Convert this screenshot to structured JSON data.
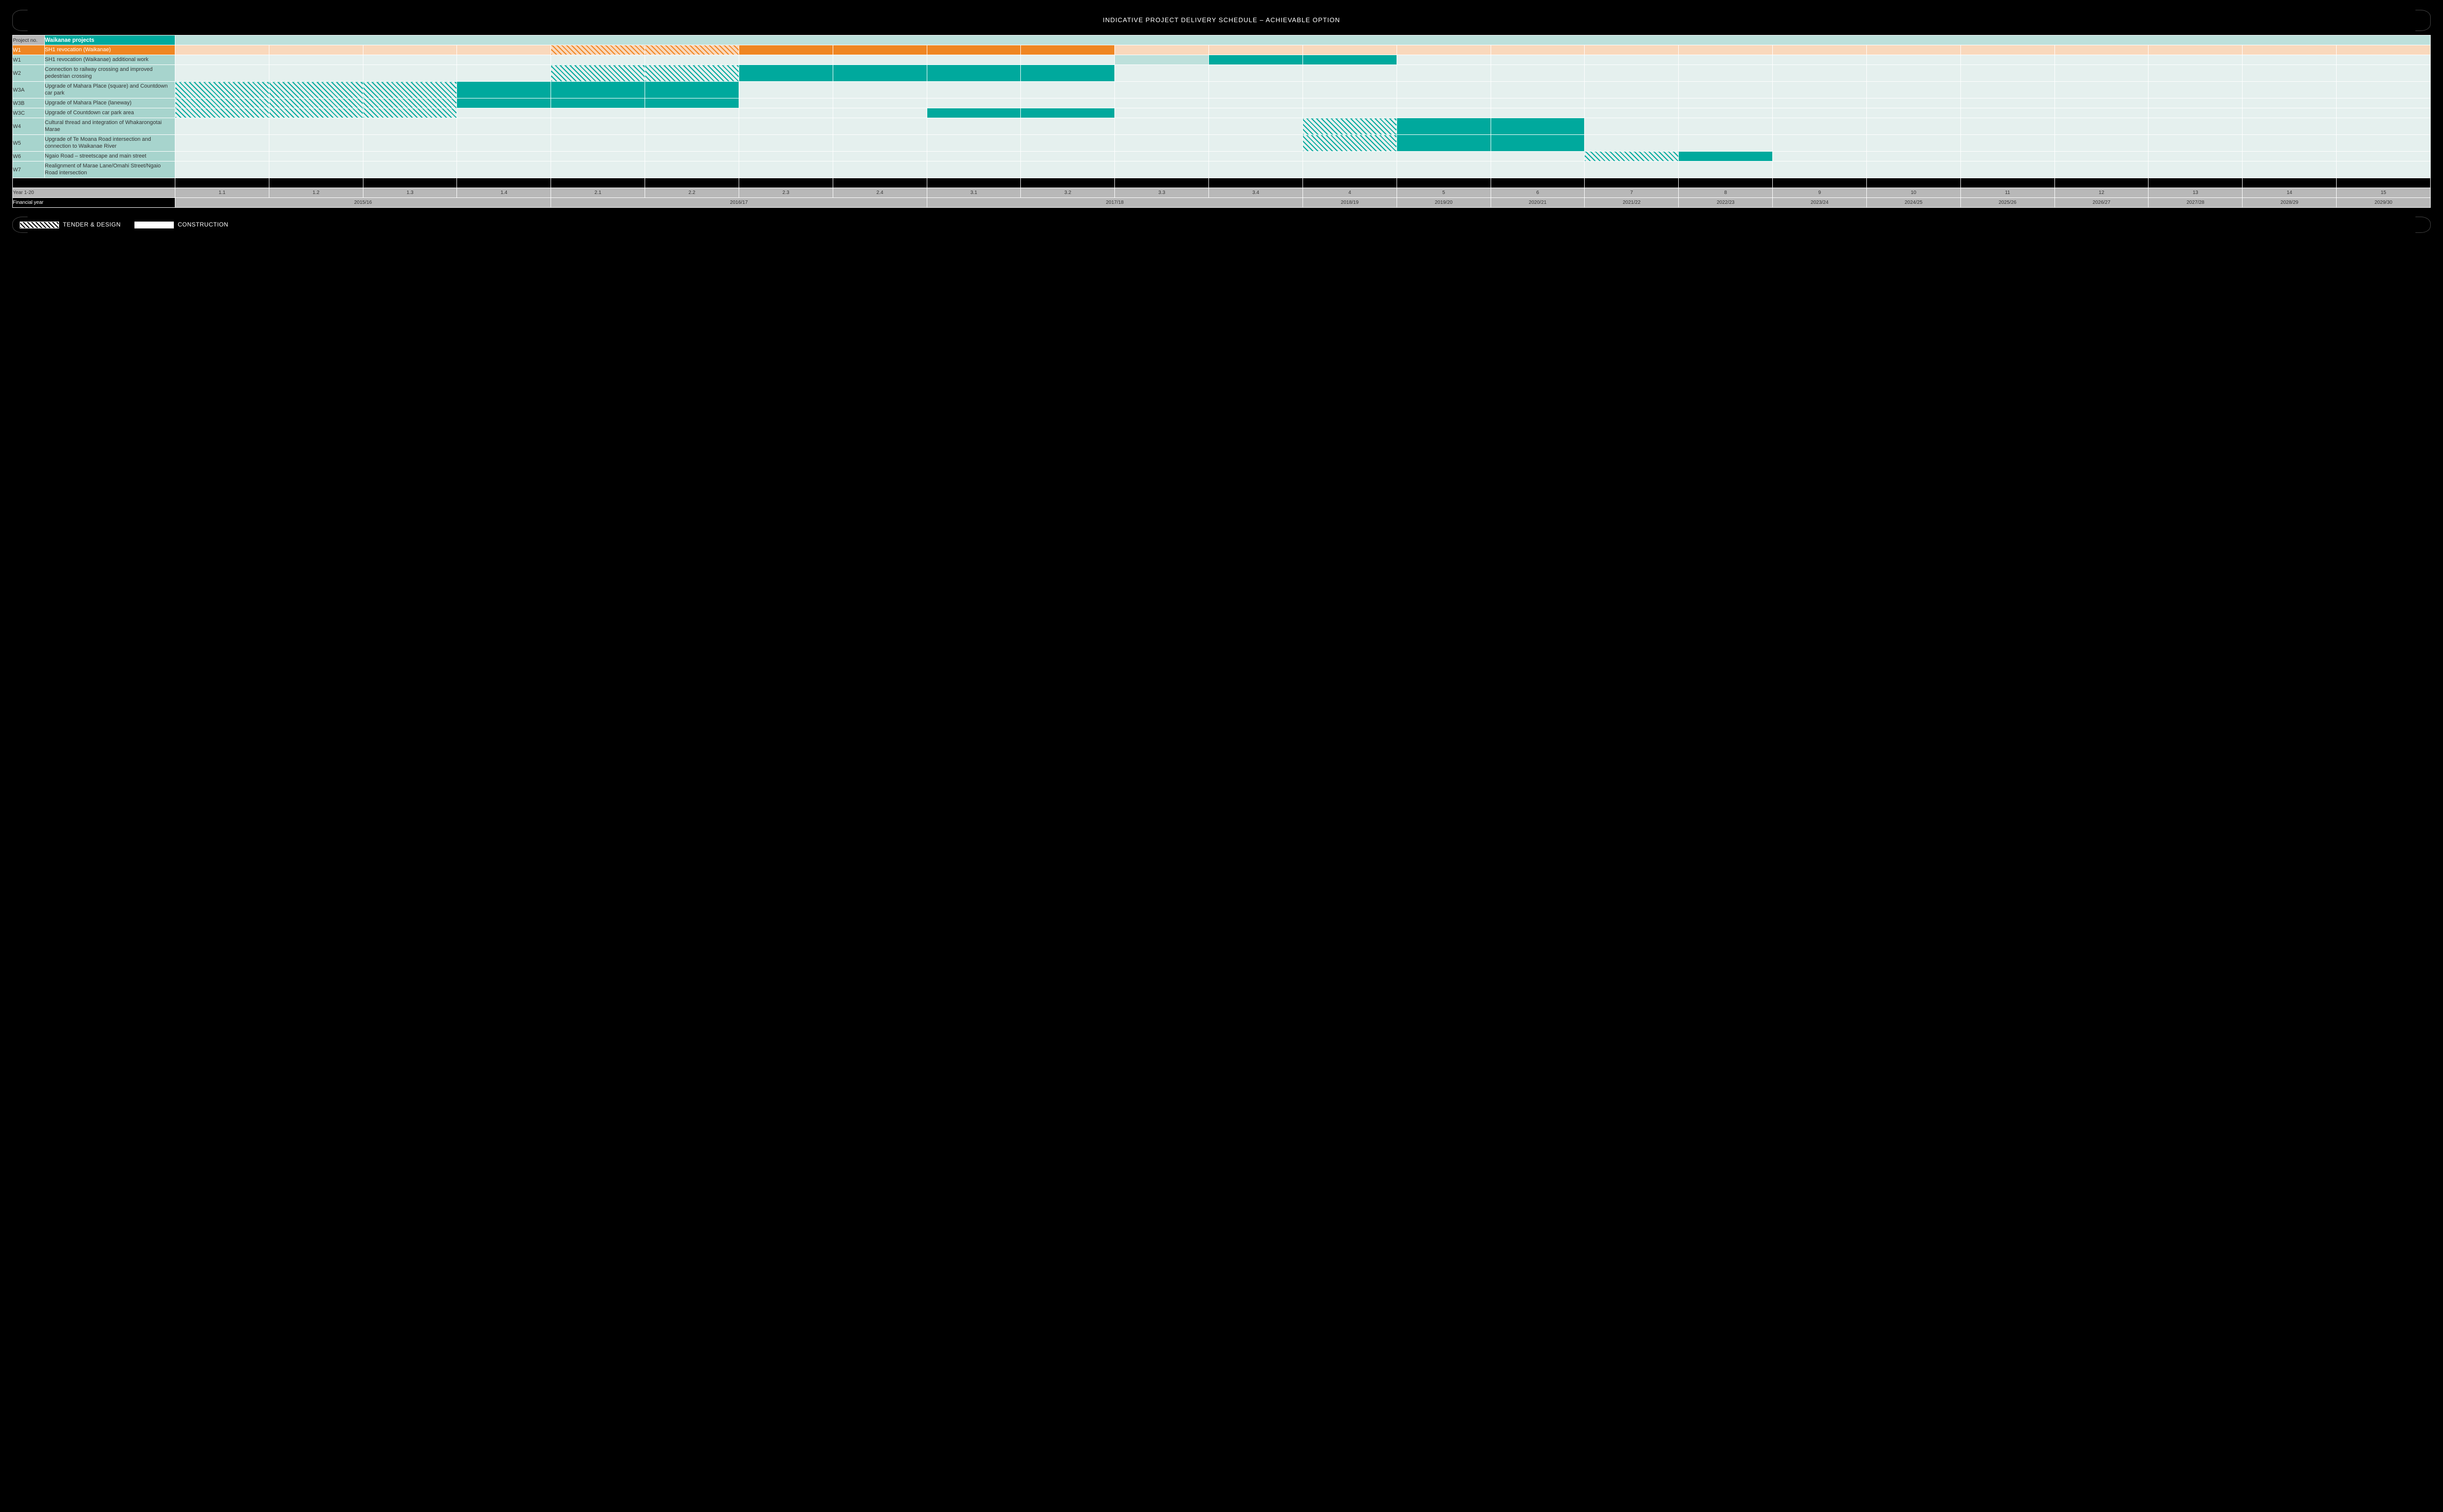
{
  "title": "INDICATIVE PROJECT DELIVERY SCHEDULE – ACHIEVABLE OPTION",
  "header": {
    "proj_no_label": "Project no.",
    "section_label": "Waikanae projects"
  },
  "colors": {
    "teal": "#00a99d",
    "teal_light": "#a7d4cd",
    "teal_pale": "#bde0db",
    "teal_cell_bg": "#e5f0ee",
    "orange": "#ef8622",
    "orange_cell_bg": "#f9d8bc",
    "grey": "#b8b8b8",
    "black": "#000000",
    "white": "#ffffff"
  },
  "timeline": {
    "columns_total": 24,
    "year_labels": [
      "1.1",
      "1.2",
      "1.3",
      "1.4",
      "2.1",
      "2.2",
      "2.3",
      "2.4",
      "3.1",
      "3.2",
      "3.3",
      "3.4",
      "4",
      "5",
      "6",
      "7",
      "8",
      "9",
      "10",
      "11",
      "12",
      "13",
      "14",
      "15"
    ],
    "fy_spans": [
      {
        "label": "2015/16",
        "span": 4
      },
      {
        "label": "2016/17",
        "span": 4
      },
      {
        "label": "2017/18",
        "span": 4
      },
      {
        "label": "2018/19",
        "span": 1
      },
      {
        "label": "2019/20",
        "span": 1
      },
      {
        "label": "2020/21",
        "span": 1
      },
      {
        "label": "2021/22",
        "span": 1
      },
      {
        "label": "2022/23",
        "span": 1
      },
      {
        "label": "2023/24",
        "span": 1
      },
      {
        "label": "2024/25",
        "span": 1
      },
      {
        "label": "2025/26",
        "span": 1
      },
      {
        "label": "2026/27",
        "span": 1
      },
      {
        "label": "2027/28",
        "span": 1
      },
      {
        "label": "2028/29",
        "span": 1
      },
      {
        "label": "2029/30",
        "span": 1
      }
    ]
  },
  "footer_labels": {
    "year_row": "Year 1-20",
    "fy_row": "Financial year"
  },
  "legend": {
    "tender": "TENDER & DESIGN",
    "construction": "CONSTRUCTION"
  },
  "projects": [
    {
      "id": "W1",
      "name": "SH1 revocation (Waikanae)",
      "accent": "orange",
      "tall": false,
      "bars": [
        {
          "type": "tender",
          "start": 5,
          "end": 7
        },
        {
          "type": "construct",
          "start": 7,
          "end": 11
        }
      ]
    },
    {
      "id": "W1",
      "name": "SH1 revocation (Waikanae) additional work",
      "accent": "teal",
      "tall": false,
      "bars": [
        {
          "type": "context",
          "start": 11,
          "end": 12
        },
        {
          "type": "construct",
          "start": 12,
          "end": 14
        }
      ]
    },
    {
      "id": "W2",
      "name": "Connection to railway crossing and improved pedestrian crossing",
      "accent": "teal",
      "tall": true,
      "bars": [
        {
          "type": "tender",
          "start": 5,
          "end": 7
        },
        {
          "type": "construct",
          "start": 7,
          "end": 11
        }
      ]
    },
    {
      "id": "W3A",
      "name": "Upgrade of Mahara Place (square) and Countdown car park",
      "accent": "teal",
      "tall": true,
      "bars": [
        {
          "type": "tender",
          "start": 1,
          "end": 4
        },
        {
          "type": "construct",
          "start": 4,
          "end": 7
        }
      ]
    },
    {
      "id": "W3B",
      "name": "Upgrade of Mahara Place (laneway)",
      "accent": "teal",
      "tall": false,
      "bars": [
        {
          "type": "tender",
          "start": 1,
          "end": 4
        },
        {
          "type": "construct",
          "start": 4,
          "end": 7
        }
      ]
    },
    {
      "id": "W3C",
      "name": "Upgrade of Countdown car park area",
      "accent": "teal",
      "tall": false,
      "bars": [
        {
          "type": "tender",
          "start": 1,
          "end": 4
        },
        {
          "type": "construct",
          "start": 9,
          "end": 11
        }
      ]
    },
    {
      "id": "W4",
      "name": "Cultural thread and integration of Whakarongotai Marae",
      "accent": "teal",
      "tall": true,
      "bars": [
        {
          "type": "tender",
          "start": 13,
          "end": 14
        },
        {
          "type": "construct",
          "start": 14,
          "end": 16
        }
      ]
    },
    {
      "id": "W5",
      "name": "Upgrade of Te Moana Road intersection and connection to Waikanae River",
      "accent": "teal",
      "tall": true,
      "bars": [
        {
          "type": "tender",
          "start": 13,
          "end": 14
        },
        {
          "type": "construct",
          "start": 14,
          "end": 16
        }
      ]
    },
    {
      "id": "W6",
      "name": "Ngaio Road – streetscape and main street",
      "accent": "teal",
      "tall": false,
      "bars": [
        {
          "type": "tender",
          "start": 16,
          "end": 17
        },
        {
          "type": "construct",
          "start": 17,
          "end": 18
        }
      ]
    },
    {
      "id": "W7",
      "name": "Realignment of Marae Lane/Omahi Street/Ngaio Road intersection",
      "accent": "teal",
      "tall": true,
      "bars": []
    }
  ]
}
